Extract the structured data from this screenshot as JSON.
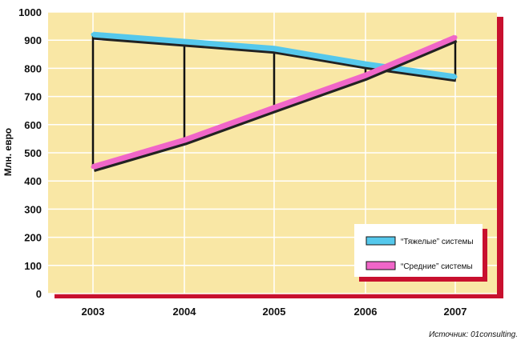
{
  "chart_data": {
    "type": "line",
    "x": [
      "2003",
      "2004",
      "2005",
      "2006",
      "2007"
    ],
    "ylabel": "Млн. евро",
    "xlabel": "",
    "ylim": [
      0,
      1000
    ],
    "yticks": [
      0,
      100,
      200,
      300,
      400,
      500,
      600,
      700,
      800,
      900,
      1000
    ],
    "grid": true,
    "legend_position": "bottom-right",
    "series": [
      {
        "name": "“Тяжелые” системы",
        "values": [
          920,
          895,
          870,
          815,
          770
        ],
        "color": "#55c8ec"
      },
      {
        "name": "“Средние” системы",
        "values": [
          450,
          545,
          660,
          775,
          910
        ],
        "color": "#f066c8"
      }
    ],
    "source": "Источник: 01consulting."
  },
  "colors": {
    "plot_background": "#f9e7a5",
    "grid": "#ffffff",
    "frame_shadow": "#c8102e",
    "drop_line": "#111111"
  }
}
